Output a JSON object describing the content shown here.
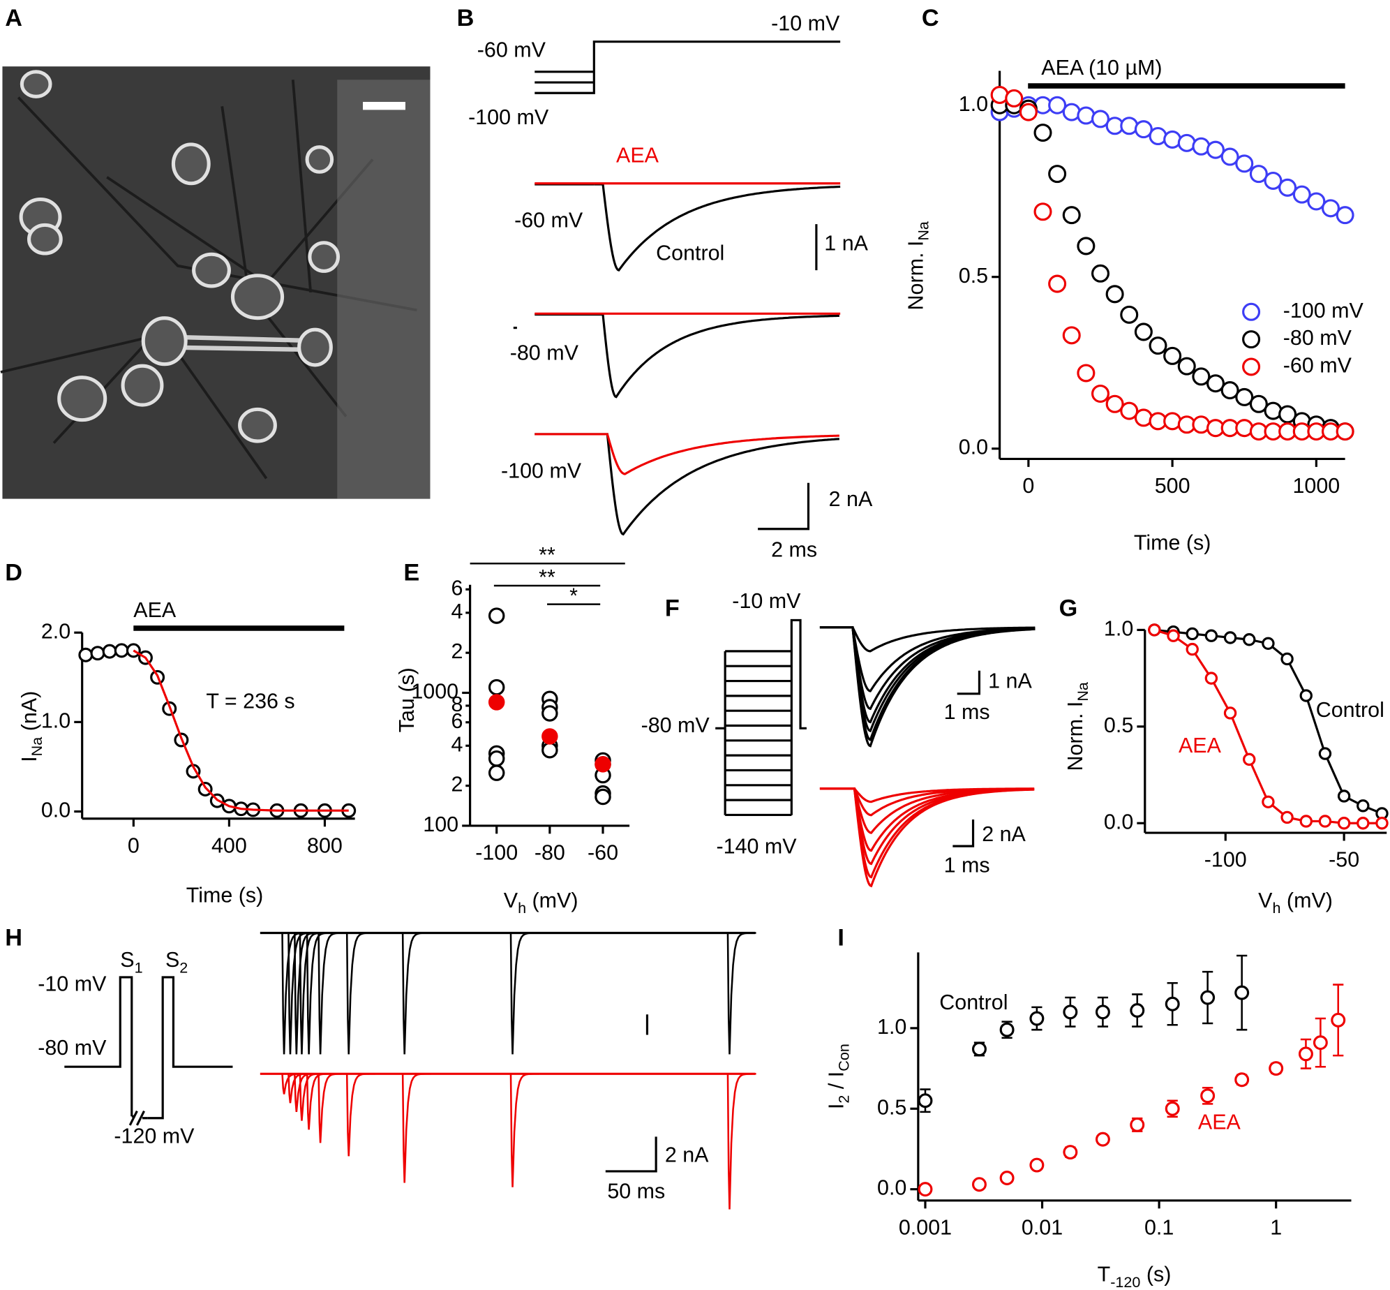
{
  "figure": {
    "letters": [
      "A",
      "B",
      "C",
      "D",
      "E",
      "F",
      "G",
      "H",
      "I"
    ],
    "B": [
      "-60 mV",
      "-10 mV",
      "-100 mV",
      "AEA",
      "-60 mV",
      "Control",
      "1 nA",
      "-80 mV",
      "-100 mV",
      "2 nA",
      "2 ms"
    ],
    "F": [
      "-10 mV",
      "-80 mV",
      "-140 mV",
      "1 nA",
      "1 ms",
      "2 nA",
      "1 ms"
    ],
    "H": [
      [
        "S",
        "1"
      ],
      [
        "S",
        "2"
      ],
      "-10 mV",
      "-80 mV",
      "-120 mV",
      "2 nA",
      "50 ms"
    ]
  },
  "chart_data": [
    {
      "type": "scatter",
      "x": [
        -100,
        -50,
        0,
        50,
        100,
        150,
        200,
        250,
        300,
        350,
        400,
        450,
        500,
        550,
        600,
        650,
        700,
        750,
        800,
        850,
        900,
        950,
        1000,
        1050,
        1100
      ],
      "series": [
        {
          "name": "-100 mV",
          "color": "#3d3df5",
          "style": "markers",
          "values": [
            0.98,
            0.99,
            1.0,
            1.0,
            1.0,
            0.98,
            0.97,
            0.96,
            0.94,
            0.94,
            0.93,
            0.91,
            0.9,
            0.89,
            0.88,
            0.87,
            0.85,
            0.83,
            0.8,
            0.78,
            0.76,
            0.74,
            0.72,
            0.7,
            0.68
          ]
        },
        {
          "name": "-80 mV",
          "color": "#000000",
          "style": "markers",
          "values": [
            1.0,
            1.0,
            0.99,
            0.92,
            0.8,
            0.68,
            0.59,
            0.51,
            0.45,
            0.39,
            0.34,
            0.3,
            0.27,
            0.24,
            0.21,
            0.19,
            0.17,
            0.15,
            0.13,
            0.11,
            0.1,
            0.08,
            0.07,
            0.06,
            0.05
          ]
        },
        {
          "name": "-60 mV",
          "color": "#ee0000",
          "style": "markers",
          "values": [
            1.03,
            1.02,
            0.98,
            0.69,
            0.48,
            0.33,
            0.22,
            0.16,
            0.13,
            0.11,
            0.09,
            0.08,
            0.08,
            0.07,
            0.07,
            0.06,
            0.06,
            0.06,
            0.05,
            0.05,
            0.05,
            0.05,
            0.05,
            0.05,
            0.05
          ]
        }
      ],
      "xlim": [
        -100,
        1100
      ],
      "xticks": [
        0,
        500,
        1000
      ],
      "ylim": [
        -0.03,
        1.1
      ],
      "yticks": [
        {
          "value": 0,
          "label": "0.0"
        },
        0.5,
        {
          "value": 1,
          "label": "1.0"
        }
      ],
      "xlabel": [
        "Time (s)"
      ],
      "ylabel": [
        "Norm. I",
        "Na"
      ],
      "annotations": [
        "AEA (10 µM)"
      ],
      "legend": "right"
    },
    {
      "type": "scatter",
      "series": [
        {
          "color": "#000000",
          "style": "markers",
          "x": [
            -200,
            -150,
            -100,
            -50,
            0,
            50,
            100,
            150,
            200,
            250,
            300,
            350,
            400,
            450,
            500,
            600,
            700,
            800,
            900
          ],
          "values": [
            1.75,
            1.77,
            1.79,
            1.8,
            1.8,
            1.72,
            1.5,
            1.15,
            0.8,
            0.45,
            0.25,
            0.12,
            0.06,
            0.03,
            0.02,
            0.01,
            0.01,
            0.01,
            0.01
          ]
        },
        {
          "color": "#ee0000",
          "style": "line",
          "x": [
            0,
            50,
            100,
            150,
            200,
            250,
            300,
            350,
            400,
            450,
            500,
            600,
            700,
            800,
            900
          ],
          "values": [
            1.8,
            1.72,
            1.52,
            1.18,
            0.82,
            0.5,
            0.27,
            0.13,
            0.06,
            0.03,
            0.02,
            0.01,
            0.01,
            0.01,
            0.01
          ]
        }
      ],
      "xlim": [
        -215,
        926
      ],
      "xticks": [
        0,
        400,
        800
      ],
      "ylim": [
        -0.08,
        2.0
      ],
      "yticks": [
        {
          "value": 0,
          "label": "0.0"
        },
        {
          "value": 1,
          "label": "1.0"
        },
        {
          "value": 2,
          "label": "2.0"
        }
      ],
      "xlabel": [
        "Time (s)"
      ],
      "ylabel": [
        "I",
        "Na",
        " (nA)"
      ],
      "annotations": [
        "AEA",
        "T = 236 s"
      ]
    },
    {
      "type": "strip",
      "categories": [
        "-100",
        "-80",
        "-60"
      ],
      "series": [
        {
          "color": "#000000",
          "filled": false,
          "values": [
            [
              3800,
              1100,
              350,
              320,
              250
            ],
            [
              900,
              780,
              700,
              400,
              370
            ],
            [
              310,
              290,
              240,
              175,
              165
            ]
          ]
        },
        {
          "color": "#ee0000",
          "filled": true,
          "values": [
            850,
            470,
            290
          ]
        }
      ],
      "ylog": true,
      "ylim": [
        100,
        6500
      ],
      "yticks": [
        100,
        {
          "value": 200,
          "label": "2"
        },
        {
          "value": 400,
          "label": "4"
        },
        {
          "value": 600,
          "label": "6"
        },
        {
          "value": 800,
          "label": "8"
        },
        1000,
        {
          "value": 2000,
          "label": "2"
        },
        {
          "value": 4000,
          "label": "4"
        },
        {
          "value": 6000,
          "label": "6"
        }
      ],
      "xlabel": [
        "V",
        "h",
        " (mV)"
      ],
      "ylabel": [
        "Tau (s)"
      ],
      "annotations": [
        "**",
        "**",
        "*"
      ]
    },
    {
      "type": "line",
      "x": [
        -130,
        -122,
        -114,
        -106,
        -98,
        -90,
        -82,
        -74,
        -66,
        -58,
        -50,
        -42,
        -34
      ],
      "series": [
        {
          "color": "#000000",
          "style": "markers+line",
          "values": [
            1.0,
            0.99,
            0.98,
            0.97,
            0.96,
            0.95,
            0.93,
            0.85,
            0.66,
            0.36,
            0.14,
            0.09,
            0.05
          ]
        },
        {
          "color": "#ee0000",
          "style": "markers+line",
          "values": [
            1.0,
            0.97,
            0.9,
            0.75,
            0.57,
            0.33,
            0.11,
            0.03,
            0.01,
            0.01,
            0.0,
            0.0,
            0.0
          ]
        }
      ],
      "xlim": [
        -134,
        -32
      ],
      "xticks": [
        -100,
        -50
      ],
      "ylim": [
        -0.05,
        1.0
      ],
      "yticks": [
        {
          "value": 0,
          "label": "0.0"
        },
        0.5,
        {
          "value": 1,
          "label": "1.0"
        }
      ],
      "xlabel": [
        "V",
        "h",
        " (mV)"
      ],
      "ylabel": [
        "Norm. I",
        "Na"
      ],
      "annotations": [
        "Control",
        "AEA"
      ]
    },
    {
      "type": "scatter",
      "xlog": true,
      "series": [
        {
          "color": "#000000",
          "style": "markers",
          "x": [
            0.001,
            0.0029,
            0.005,
            0.009,
            0.0174,
            0.033,
            0.065,
            0.13,
            0.26,
            0.51
          ],
          "values": [
            0.55,
            0.87,
            0.99,
            1.06,
            1.1,
            1.1,
            1.11,
            1.15,
            1.19,
            1.22
          ],
          "errors": [
            0.07,
            0.04,
            0.05,
            0.07,
            0.09,
            0.09,
            0.1,
            0.13,
            0.16,
            0.23
          ]
        },
        {
          "color": "#ee0000",
          "style": "markers",
          "x": [
            0.001,
            0.0029,
            0.005,
            0.009,
            0.0174,
            0.033,
            0.065,
            0.13,
            0.26,
            0.51,
            1.0,
            1.8,
            2.4,
            3.4
          ],
          "values": [
            0.0,
            0.03,
            0.07,
            0.15,
            0.23,
            0.31,
            0.4,
            0.5,
            0.58,
            0.68,
            0.75,
            0.84,
            0.91,
            1.05
          ],
          "errors": [
            0.01,
            0.01,
            0.02,
            0.02,
            0.03,
            0.02,
            0.04,
            0.05,
            0.05,
            0.03,
            0.03,
            0.09,
            0.15,
            0.22
          ]
        }
      ],
      "xlim": [
        0.00087,
        4.4
      ],
      "xticks": [
        0.001,
        0.01,
        0.1,
        1
      ],
      "ylim": [
        -0.07,
        1.47
      ],
      "yticks": [
        {
          "value": 0,
          "label": "0.0"
        },
        0.5,
        {
          "value": 1,
          "label": "1.0"
        }
      ],
      "xlabel": [
        "T",
        "-120",
        " (s)"
      ],
      "ylabel": [
        "I",
        "2",
        " / I",
        "Con"
      ],
      "annotations": [
        "Control",
        "AEA"
      ]
    }
  ]
}
